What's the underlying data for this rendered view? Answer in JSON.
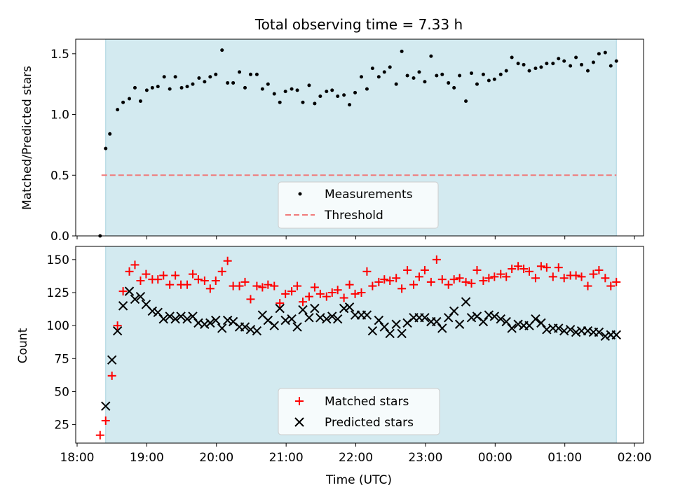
{
  "figure": {
    "title": "Total observing time = 7.33 h",
    "xlabel": "Time (UTC)",
    "x_tick_labels": [
      "18:00",
      "19:00",
      "20:00",
      "21:00",
      "22:00",
      "23:00",
      "00:00",
      "01:00",
      "02:00"
    ],
    "x_tick_hours": [
      18,
      19,
      20,
      21,
      22,
      23,
      24,
      25,
      26
    ],
    "xlim_hours": [
      17.98,
      26.13
    ],
    "observing_window_hours": [
      18.41,
      25.74
    ],
    "window_color": "#d3eaf0",
    "window_edge_color": "#a8d3df"
  },
  "chart_data": [
    {
      "type": "scatter",
      "ylabel": "Matched/Predicted stars",
      "ylim": [
        0,
        1.62
      ],
      "y_ticks": [
        0,
        0.5,
        1.0,
        1.5
      ],
      "y_tick_labels": [
        "0.0",
        "0.5",
        "1.0",
        "1.5"
      ],
      "threshold": {
        "name": "Threshold",
        "y": 0.5,
        "x_start": 18.35,
        "x_end": 25.74,
        "color": "#f07a7a"
      },
      "legend": {
        "placement": "lower-center",
        "entries": [
          "Measurements",
          "Threshold"
        ]
      },
      "series": [
        {
          "name": "Measurements",
          "color": "#000000",
          "marker": "dot",
          "x": [
            18.33,
            18.41,
            18.47,
            18.58,
            18.66,
            18.75,
            18.83,
            18.91,
            19.0,
            19.08,
            19.16,
            19.25,
            19.33,
            19.41,
            19.5,
            19.58,
            19.66,
            19.75,
            19.83,
            19.91,
            19.99,
            20.08,
            20.16,
            20.24,
            20.33,
            20.41,
            20.49,
            20.58,
            20.66,
            20.74,
            20.83,
            20.91,
            20.99,
            21.08,
            21.16,
            21.24,
            21.33,
            21.41,
            21.49,
            21.58,
            21.66,
            21.74,
            21.83,
            21.91,
            21.99,
            22.08,
            22.16,
            22.24,
            22.33,
            22.41,
            22.49,
            22.58,
            22.66,
            22.74,
            22.83,
            22.91,
            22.99,
            23.08,
            23.16,
            23.24,
            23.33,
            23.41,
            23.49,
            23.58,
            23.66,
            23.74,
            23.83,
            23.91,
            23.99,
            24.08,
            24.16,
            24.24,
            24.33,
            24.41,
            24.49,
            24.58,
            24.66,
            24.74,
            24.83,
            24.91,
            24.99,
            25.08,
            25.16,
            25.24,
            25.33,
            25.41,
            25.49,
            25.58,
            25.66,
            25.74
          ],
          "y": [
            0.0,
            0.72,
            0.84,
            1.04,
            1.1,
            1.13,
            1.22,
            1.11,
            1.2,
            1.22,
            1.23,
            1.31,
            1.21,
            1.31,
            1.22,
            1.23,
            1.25,
            1.3,
            1.27,
            1.31,
            1.33,
            1.53,
            1.26,
            1.26,
            1.35,
            1.22,
            1.33,
            1.33,
            1.21,
            1.25,
            1.17,
            1.1,
            1.19,
            1.21,
            1.2,
            1.1,
            1.24,
            1.09,
            1.15,
            1.19,
            1.2,
            1.15,
            1.16,
            1.08,
            1.18,
            1.31,
            1.21,
            1.38,
            1.31,
            1.35,
            1.39,
            1.25,
            1.52,
            1.32,
            1.3,
            1.35,
            1.27,
            1.48,
            1.32,
            1.33,
            1.26,
            1.22,
            1.32,
            1.11,
            1.34,
            1.25,
            1.33,
            1.28,
            1.29,
            1.33,
            1.36,
            1.47,
            1.42,
            1.41,
            1.36,
            1.38,
            1.39,
            1.42,
            1.42,
            1.46,
            1.44,
            1.4,
            1.47,
            1.41,
            1.36,
            1.43,
            1.5,
            1.51,
            1.4,
            1.44
          ]
        }
      ]
    },
    {
      "type": "scatter",
      "ylabel": "Count",
      "ylim": [
        11,
        160
      ],
      "y_ticks": [
        25,
        50,
        75,
        100,
        125,
        150
      ],
      "y_tick_labels": [
        "25",
        "50",
        "75",
        "100",
        "125",
        "150"
      ],
      "legend": {
        "placement": "lower-center",
        "entries": [
          "Matched stars",
          "Predicted stars"
        ]
      },
      "series": [
        {
          "name": "Matched stars",
          "color": "#ff0000",
          "marker": "plus",
          "x": [
            18.33,
            18.41,
            18.5,
            18.58,
            18.66,
            18.75,
            18.83,
            18.91,
            18.99,
            19.08,
            19.16,
            19.24,
            19.33,
            19.41,
            19.49,
            19.58,
            19.66,
            19.74,
            19.83,
            19.91,
            19.99,
            20.08,
            20.16,
            20.24,
            20.33,
            20.41,
            20.49,
            20.58,
            20.66,
            20.74,
            20.83,
            20.91,
            20.99,
            21.08,
            21.16,
            21.24,
            21.33,
            21.41,
            21.49,
            21.58,
            21.66,
            21.74,
            21.83,
            21.91,
            21.99,
            22.08,
            22.16,
            22.24,
            22.33,
            22.41,
            22.49,
            22.58,
            22.66,
            22.74,
            22.83,
            22.91,
            22.99,
            23.08,
            23.16,
            23.24,
            23.33,
            23.41,
            23.49,
            23.58,
            23.66,
            23.74,
            23.83,
            23.91,
            23.99,
            24.08,
            24.16,
            24.24,
            24.33,
            24.41,
            24.49,
            24.58,
            24.66,
            24.74,
            24.83,
            24.91,
            24.99,
            25.08,
            25.16,
            25.24,
            25.33,
            25.41,
            25.49,
            25.58,
            25.66,
            25.74
          ],
          "y": [
            17,
            28,
            62,
            100,
            126,
            141,
            146,
            134,
            139,
            135,
            135,
            138,
            131,
            138,
            131,
            131,
            139,
            135,
            134,
            128,
            134,
            141,
            149,
            130,
            130,
            133,
            120,
            130,
            129,
            131,
            130,
            117,
            124,
            126,
            130,
            118,
            122,
            129,
            124,
            122,
            125,
            127,
            121,
            131,
            124,
            125,
            141,
            130,
            133,
            135,
            134,
            136,
            128,
            142,
            131,
            137,
            142,
            133,
            150,
            135,
            131,
            135,
            136,
            133,
            132,
            142,
            134,
            136,
            137,
            139,
            137,
            143,
            145,
            143,
            141,
            136,
            145,
            144,
            137,
            144,
            136,
            138,
            138,
            137,
            130,
            139,
            142,
            136,
            130,
            133
          ]
        },
        {
          "name": "Predicted stars",
          "color": "#000000",
          "marker": "x",
          "x": [
            18.41,
            18.5,
            18.58,
            18.66,
            18.75,
            18.83,
            18.91,
            18.99,
            19.08,
            19.16,
            19.24,
            19.33,
            19.41,
            19.49,
            19.58,
            19.66,
            19.74,
            19.83,
            19.91,
            19.99,
            20.08,
            20.16,
            20.24,
            20.33,
            20.41,
            20.49,
            20.58,
            20.66,
            20.74,
            20.83,
            20.91,
            20.99,
            21.08,
            21.16,
            21.24,
            21.33,
            21.41,
            21.49,
            21.58,
            21.66,
            21.74,
            21.83,
            21.91,
            21.99,
            22.08,
            22.16,
            22.24,
            22.33,
            22.41,
            22.49,
            22.58,
            22.66,
            22.74,
            22.83,
            22.91,
            22.99,
            23.08,
            23.16,
            23.24,
            23.33,
            23.41,
            23.49,
            23.58,
            23.66,
            23.74,
            23.83,
            23.91,
            23.99,
            24.08,
            24.16,
            24.24,
            24.33,
            24.41,
            24.49,
            24.58,
            24.66,
            24.74,
            24.83,
            24.91,
            24.99,
            25.08,
            25.16,
            25.24,
            25.33,
            25.41,
            25.49,
            25.58,
            25.66,
            25.74
          ],
          "y": [
            39,
            74,
            96,
            115,
            126,
            120,
            122,
            116,
            111,
            110,
            105,
            107,
            105,
            107,
            105,
            107,
            102,
            101,
            102,
            104,
            98,
            104,
            103,
            99,
            99,
            97,
            96,
            108,
            104,
            100,
            113,
            104,
            105,
            99,
            112,
            106,
            113,
            106,
            105,
            107,
            105,
            113,
            114,
            108,
            108,
            108,
            96,
            104,
            99,
            94,
            101,
            94,
            102,
            106,
            106,
            106,
            103,
            103,
            98,
            106,
            111,
            101,
            118,
            106,
            107,
            103,
            108,
            107,
            105,
            103,
            98,
            101,
            100,
            100,
            105,
            102,
            97,
            98,
            98,
            96,
            97,
            95,
            96,
            96,
            95,
            95,
            92,
            93,
            93
          ]
        }
      ]
    }
  ]
}
